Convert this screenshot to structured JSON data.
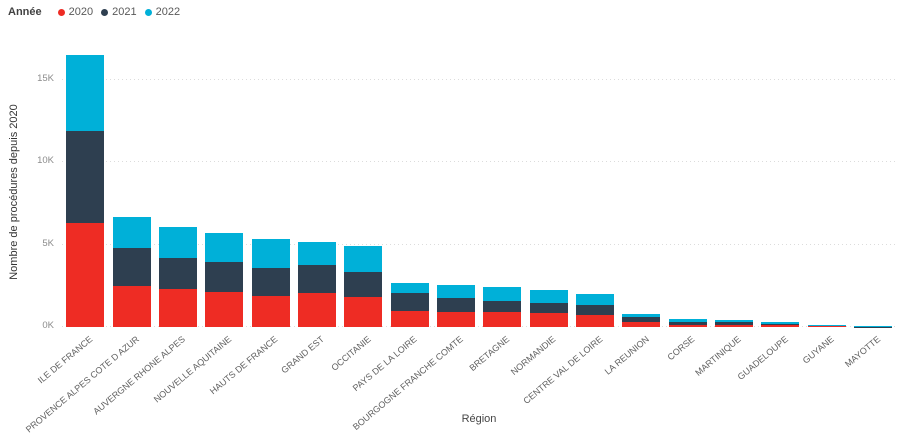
{
  "page": {
    "background": "#ffffff"
  },
  "legend": {
    "title": "Année",
    "position": "top-left"
  },
  "axis": {
    "x_title": "Région",
    "y_title": "Nombre de procédures depuis 2020"
  },
  "chart_data": {
    "type": "bar",
    "stacked": true,
    "title": "",
    "xlabel": "Région",
    "ylabel": "Nombre de procédures depuis 2020",
    "legend_title": "Année",
    "legend_position": "top-left",
    "grid": "horizontal-dotted",
    "grid_color": "#dcdcdc",
    "ylim": [
      0,
      17000
    ],
    "ytick_values": [
      0,
      5000,
      10000,
      15000
    ],
    "yticks": [
      "0K",
      "5K",
      "10K",
      "15K"
    ],
    "categories": [
      "ILE DE FRANCE",
      "PROVENCE ALPES COTE D AZUR",
      "AUVERGNE RHONE ALPES",
      "NOUVELLE AQUITAINE",
      "HAUTS DE FRANCE",
      "GRAND EST",
      "OCCITANIE",
      "PAYS DE LA LOIRE",
      "BOURGOGNE FRANCHE COMTE",
      "BRETAGNE",
      "NORMANDIE",
      "CENTRE VAL DE LOIRE",
      "LA REUNION",
      "CORSE",
      "MARTINIQUE",
      "GUADELOUPE",
      "GUYANE",
      "MAYOTTE"
    ],
    "series": [
      {
        "name": "2020",
        "color": "#ee2c24",
        "values": [
          6300,
          2500,
          2300,
          2150,
          1900,
          2050,
          1850,
          1000,
          900,
          900,
          850,
          700,
          300,
          150,
          150,
          100,
          50,
          10
        ]
      },
      {
        "name": "2021",
        "color": "#2e3f50",
        "values": [
          5600,
          2300,
          1900,
          1800,
          1700,
          1700,
          1500,
          1050,
          850,
          700,
          600,
          650,
          300,
          175,
          125,
          100,
          50,
          10
        ]
      },
      {
        "name": "2022",
        "color": "#00b0d8",
        "values": [
          4600,
          1900,
          1850,
          1750,
          1750,
          1400,
          1550,
          650,
          800,
          850,
          800,
          650,
          200,
          150,
          125,
          75,
          50,
          20
        ]
      }
    ]
  }
}
